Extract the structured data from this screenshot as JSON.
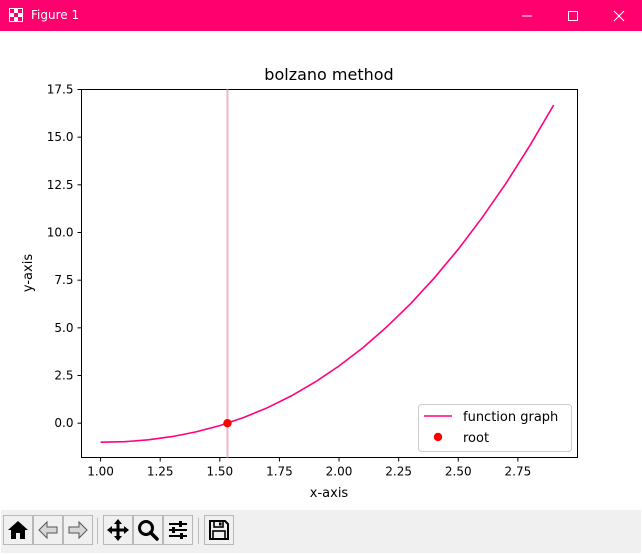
{
  "window": {
    "title": "Figure 1",
    "accent_color": "#ff006e",
    "icons": {
      "app": "figure-app-icon",
      "minimize": "minimize-icon",
      "maximize": "maximize-icon",
      "close": "close-icon"
    }
  },
  "toolbar": {
    "buttons": [
      {
        "name": "home-button",
        "icon": "home-icon"
      },
      {
        "name": "back-button",
        "icon": "back-arrow-icon"
      },
      {
        "name": "forward-button",
        "icon": "forward-arrow-icon"
      },
      {
        "name": "pan-button",
        "icon": "pan-arrows-icon"
      },
      {
        "name": "zoom-button",
        "icon": "magnifier-icon"
      },
      {
        "name": "configure-subplots-button",
        "icon": "sliders-icon"
      },
      {
        "name": "save-button",
        "icon": "floppy-disk-icon"
      }
    ]
  },
  "chart_data": {
    "type": "line",
    "title": "bolzano method",
    "xlabel": "x-axis",
    "ylabel": "y-axis",
    "xlim": [
      0.92,
      3.0
    ],
    "ylim": [
      -1.8,
      17.5
    ],
    "xticks": [
      1.0,
      1.25,
      1.5,
      1.75,
      2.0,
      2.25,
      2.5,
      2.75
    ],
    "xtick_labels": [
      "1.00",
      "1.25",
      "1.50",
      "1.75",
      "2.00",
      "2.25",
      "2.50",
      "2.75"
    ],
    "yticks": [
      0.0,
      2.5,
      5.0,
      7.5,
      10.0,
      12.5,
      15.0,
      17.5
    ],
    "ytick_labels": [
      "0.0",
      "2.5",
      "5.0",
      "7.5",
      "10.0",
      "12.5",
      "15.0",
      "17.5"
    ],
    "grid": false,
    "legend": "lower-right",
    "series": [
      {
        "name": "function graph",
        "color": "#ff007f",
        "x": [
          1.0,
          1.1,
          1.2,
          1.3,
          1.4,
          1.5,
          1.6,
          1.7,
          1.8,
          1.9,
          2.0,
          2.1,
          2.2,
          2.3,
          2.4,
          2.5,
          2.6,
          2.7,
          2.8,
          2.9
        ],
        "y": [
          -1.0,
          -0.969,
          -0.872,
          -0.703,
          -0.456,
          -0.125,
          0.296,
          0.813,
          1.432,
          2.159,
          3.0,
          3.961,
          5.048,
          6.267,
          7.624,
          9.125,
          10.776,
          12.583,
          14.552,
          16.689
        ]
      },
      {
        "name": "root",
        "type": "scatter",
        "color": "#ff0000",
        "x": [
          1.5321
        ],
        "y": [
          0.0
        ]
      }
    ],
    "vertical_line": {
      "x": 1.5321,
      "color": "#f5b3c3"
    }
  }
}
